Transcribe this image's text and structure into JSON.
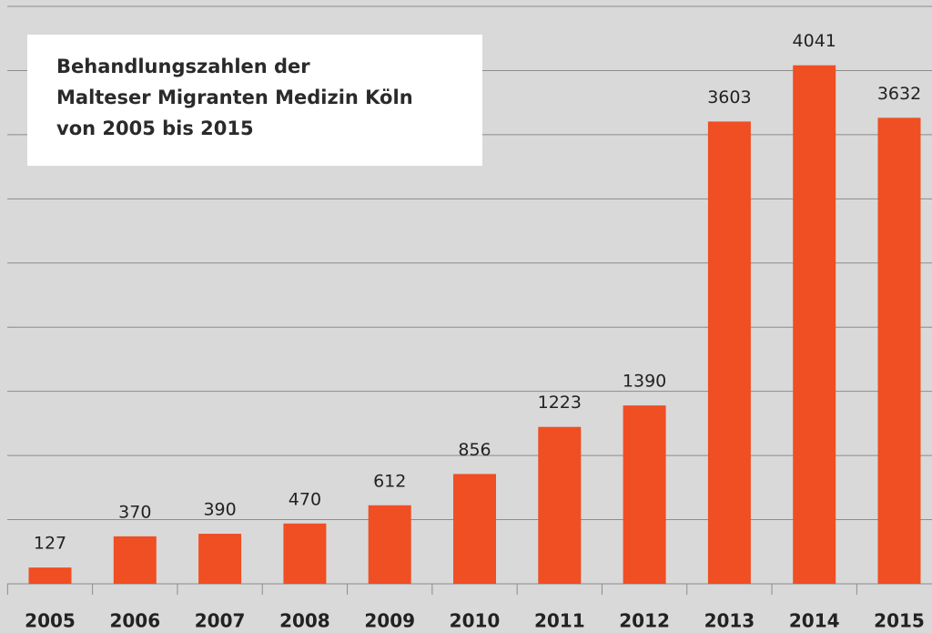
{
  "chart_data": {
    "type": "bar",
    "title": [
      "Behandlungszahlen der",
      "Malteser Migranten Medizin Köln",
      "von 2005 bis 2015"
    ],
    "categories": [
      "2005",
      "2006",
      "2007",
      "2008",
      "2009",
      "2010",
      "2011",
      "2012",
      "2013",
      "2014",
      "2015"
    ],
    "values": [
      127,
      370,
      390,
      470,
      612,
      856,
      1223,
      1390,
      3603,
      4041,
      3632
    ],
    "color": "#f04e23",
    "ylim": [
      0,
      4550
    ],
    "yticks": [
      500,
      1000,
      1500,
      2000,
      2500,
      3000,
      3500,
      4000,
      4500
    ],
    "grid": true
  }
}
